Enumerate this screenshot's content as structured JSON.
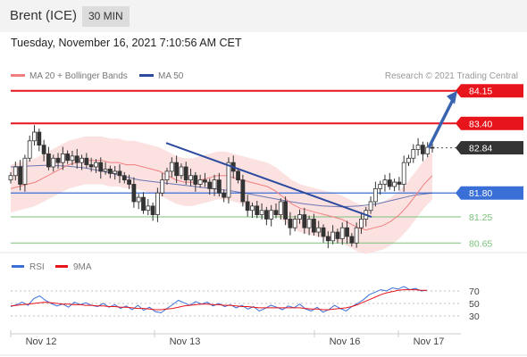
{
  "header": {
    "title": "Brent (ICE)",
    "timeframe": "30 MIN"
  },
  "datetime": "Tuesday, November 16, 2021 7:10:56 AM CET",
  "legend": {
    "ma20_label": "MA 20 + Bollinger Bands",
    "ma50_label": "MA 50",
    "credit": "Research © 2021 Trading Central"
  },
  "rsi_legend": {
    "rsi_label": "RSI",
    "ma_label": "9MA"
  },
  "colors": {
    "red": "#e8141b",
    "blue": "#3a6fd8",
    "green": "#7ac27a",
    "dark": "#333333",
    "ma20": "#f08080",
    "ma50": "#2c4a9e",
    "band": "#fcdcdc"
  },
  "chart_data": {
    "type": "candlestick",
    "y_range": [
      80.45,
      84.35
    ],
    "x_labels": [
      "Nov 12",
      "Nov 13",
      "Nov 16",
      "Nov 17"
    ],
    "levels": [
      {
        "value": 84.15,
        "label": "84.15",
        "style": "resistance"
      },
      {
        "value": 83.4,
        "label": "83.40",
        "style": "resistance"
      },
      {
        "value": 82.84,
        "label": "82.84",
        "style": "last"
      },
      {
        "value": 81.8,
        "label": "81.80",
        "style": "pivot"
      },
      {
        "value": 81.25,
        "label": "81.25",
        "style": "support"
      },
      {
        "value": 80.65,
        "label": "80.65",
        "style": "support"
      }
    ],
    "closes": [
      82.2,
      82.4,
      82.0,
      82.6,
      83.0,
      83.2,
      82.9,
      82.7,
      82.4,
      82.6,
      82.5,
      82.7,
      82.55,
      82.65,
      82.5,
      82.6,
      82.45,
      82.4,
      82.5,
      82.3,
      82.35,
      82.25,
      82.3,
      82.2,
      82.1,
      82.0,
      81.6,
      81.7,
      81.4,
      81.5,
      81.3,
      81.8,
      82.1,
      82.3,
      82.5,
      82.2,
      82.4,
      82.1,
      82.2,
      82.0,
      82.1,
      82.05,
      81.9,
      82.1,
      81.8,
      81.7,
      82.5,
      82.3,
      82.1,
      81.6,
      81.4,
      81.5,
      81.3,
      81.4,
      81.2,
      81.4,
      81.3,
      81.6,
      81.2,
      81.0,
      81.2,
      81.3,
      81.0,
      81.2,
      80.9,
      81.0,
      80.8,
      80.7,
      80.9,
      80.75,
      81.0,
      80.8,
      80.65,
      81.0,
      81.2,
      81.4,
      81.6,
      81.9,
      82.0,
      82.1,
      81.95,
      82.05,
      82.0,
      82.5,
      82.6,
      82.8,
      82.9,
      82.7,
      82.85,
      82.84
    ],
    "ma20": [
      81.9,
      81.95,
      82.0,
      82.05,
      82.15,
      82.25,
      82.35,
      82.45,
      82.5,
      82.55,
      82.55,
      82.55,
      82.5,
      82.5,
      82.45,
      82.45,
      82.4,
      82.35,
      82.3,
      82.2,
      82.1,
      82.05,
      82.05,
      82.1,
      82.15,
      82.2,
      82.2,
      82.15,
      82.1,
      82.05,
      82.0,
      81.95,
      81.85,
      81.7,
      81.55,
      81.45,
      81.4,
      81.35,
      81.3,
      81.25,
      81.2,
      81.1,
      81.0,
      80.95,
      81.0,
      81.05,
      81.15,
      81.3,
      81.5,
      81.75,
      82.0,
      82.2
    ],
    "ma50": [
      82.4,
      82.42,
      82.44,
      82.42,
      82.38,
      82.3,
      82.2,
      82.1,
      82.05,
      82.0,
      81.95,
      81.9,
      81.85,
      81.78,
      81.7,
      81.62,
      81.55,
      81.5,
      81.48,
      81.5,
      81.55,
      81.65,
      81.75,
      81.8
    ],
    "trendline": {
      "from": 82.95,
      "to": 81.25
    },
    "projection": {
      "from": 82.84,
      "to": 84.15
    },
    "rsi": {
      "ticks": [
        70,
        50,
        30
      ],
      "range": [
        10,
        90
      ],
      "values": [
        45,
        48,
        52,
        47,
        58,
        62,
        55,
        50,
        46,
        49,
        44,
        52,
        48,
        51,
        47,
        45,
        50,
        44,
        48,
        42,
        46,
        40,
        47,
        39,
        44,
        37,
        35,
        42,
        48,
        55,
        51,
        47,
        53,
        49,
        52,
        46,
        50,
        45,
        48,
        43,
        47,
        41,
        45,
        38,
        42,
        47,
        44,
        40,
        46,
        43,
        49,
        41,
        38,
        44,
        36,
        40,
        47,
        42,
        38,
        45,
        50,
        56,
        64,
        68,
        72,
        70,
        75,
        73,
        77,
        72,
        74,
        70,
        71
      ],
      "ma": [
        46,
        47,
        48,
        49,
        50,
        51,
        52,
        51,
        50,
        49,
        49,
        48,
        48,
        47,
        47,
        46,
        46,
        45,
        45,
        44,
        44,
        43,
        42,
        42,
        41,
        40,
        40,
        41,
        42,
        44,
        46,
        47,
        48,
        49,
        49,
        48,
        48,
        47,
        47,
        46,
        45,
        45,
        44,
        43,
        43,
        43,
        43,
        43,
        43,
        43,
        43,
        42,
        41,
        41,
        40,
        40,
        41,
        42,
        43,
        45,
        48,
        52,
        56,
        60,
        64,
        67,
        69,
        71,
        72,
        72,
        72,
        71,
        71
      ]
    }
  }
}
